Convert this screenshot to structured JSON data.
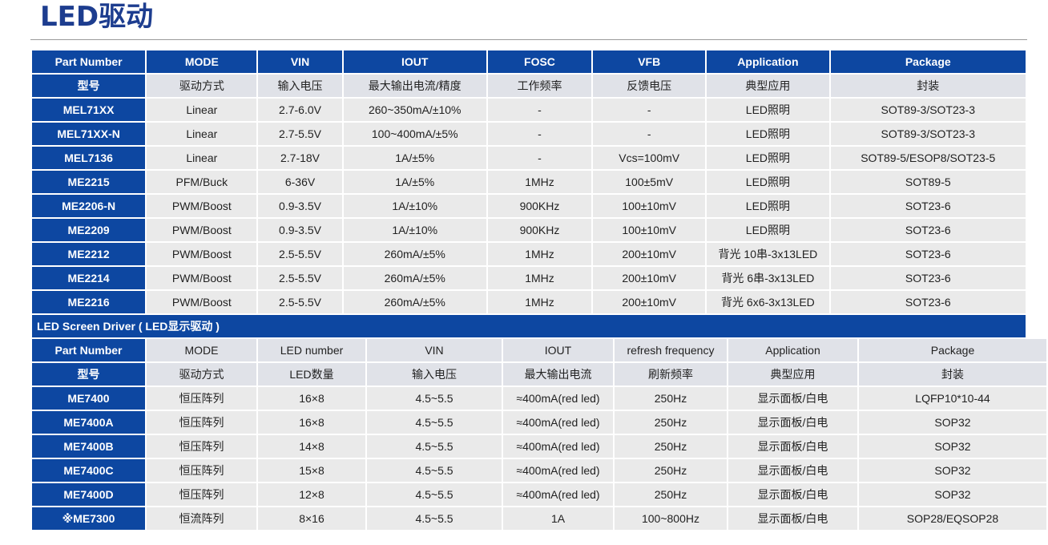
{
  "title": "LED驱动",
  "table1": {
    "headers": [
      "Part Number",
      "MODE",
      "VIN",
      "IOUT",
      "FOSC",
      "VFB",
      "Application",
      "Package"
    ],
    "subheaders": [
      "型号",
      "驱动方式",
      "输入电压",
      "最大输出电流/精度",
      "工作频率",
      "反馈电压",
      "典型应用",
      "封装"
    ],
    "rows": [
      [
        "MEL71XX",
        "Linear",
        "2.7-6.0V",
        "260~350mA/±10%",
        "-",
        "-",
        "LED照明",
        "SOT89-3/SOT23-3"
      ],
      [
        "MEL71XX-N",
        "Linear",
        "2.7-5.5V",
        "100~400mA/±5%",
        "-",
        "-",
        "LED照明",
        "SOT89-3/SOT23-3"
      ],
      [
        "MEL7136",
        "Linear",
        "2.7-18V",
        "1A/±5%",
        "-",
        "Vcs=100mV",
        "LED照明",
        "SOT89-5/ESOP8/SOT23-5"
      ],
      [
        "ME2215",
        "PFM/Buck",
        "6-36V",
        "1A/±5%",
        "1MHz",
        "100±5mV",
        "LED照明",
        "SOT89-5"
      ],
      [
        "ME2206-N",
        "PWM/Boost",
        "0.9-3.5V",
        "1A/±10%",
        "900KHz",
        "100±10mV",
        "LED照明",
        "SOT23-6"
      ],
      [
        "ME2209",
        "PWM/Boost",
        "0.9-3.5V",
        "1A/±10%",
        "900KHz",
        "100±10mV",
        "LED照明",
        "SOT23-6"
      ],
      [
        "ME2212",
        "PWM/Boost",
        "2.5-5.5V",
        "260mA/±5%",
        "1MHz",
        "200±10mV",
        "背光 10串-3x13LED",
        "SOT23-6"
      ],
      [
        "ME2214",
        "PWM/Boost",
        "2.5-5.5V",
        "260mA/±5%",
        "1MHz",
        "200±10mV",
        "背光 6串-3x13LED",
        "SOT23-6"
      ],
      [
        "ME2216",
        "PWM/Boost",
        "2.5-5.5V",
        "260mA/±5%",
        "1MHz",
        "200±10mV",
        "背光 6x6-3x13LED",
        "SOT23-6"
      ]
    ]
  },
  "section2_title": "LED Screen Driver ( LED显示驱动 )",
  "table2": {
    "headers": [
      "Part Number",
      "MODE",
      "LED number",
      "VIN",
      "IOUT",
      "refresh frequency",
      "Application",
      "Package"
    ],
    "subheaders": [
      "型号",
      "驱动方式",
      "LED数量",
      "输入电压",
      "最大输出电流",
      "刷新频率",
      "典型应用",
      "封装"
    ],
    "rows": [
      [
        "ME7400",
        "恒压阵列",
        "16×8",
        "4.5~5.5",
        "≈400mA(red led)",
        "250Hz",
        "显示面板/白电",
        "LQFP10*10-44"
      ],
      [
        "ME7400A",
        "恒压阵列",
        "16×8",
        "4.5~5.5",
        "≈400mA(red led)",
        "250Hz",
        "显示面板/白电",
        "SOP32"
      ],
      [
        "ME7400B",
        "恒压阵列",
        "14×8",
        "4.5~5.5",
        "≈400mA(red led)",
        "250Hz",
        "显示面板/白电",
        "SOP32"
      ],
      [
        "ME7400C",
        "恒压阵列",
        "15×8",
        "4.5~5.5",
        "≈400mA(red led)",
        "250Hz",
        "显示面板/白电",
        "SOP32"
      ],
      [
        "ME7400D",
        "恒压阵列",
        "12×8",
        "4.5~5.5",
        "≈400mA(red led)",
        "250Hz",
        "显示面板/白电",
        "SOP32"
      ],
      [
        "※ME7300",
        "恒流阵列",
        "8×16",
        "4.5~5.5",
        "1A",
        "100~800Hz",
        "显示面板/白电",
        "SOP28/EQSOP28"
      ]
    ]
  }
}
